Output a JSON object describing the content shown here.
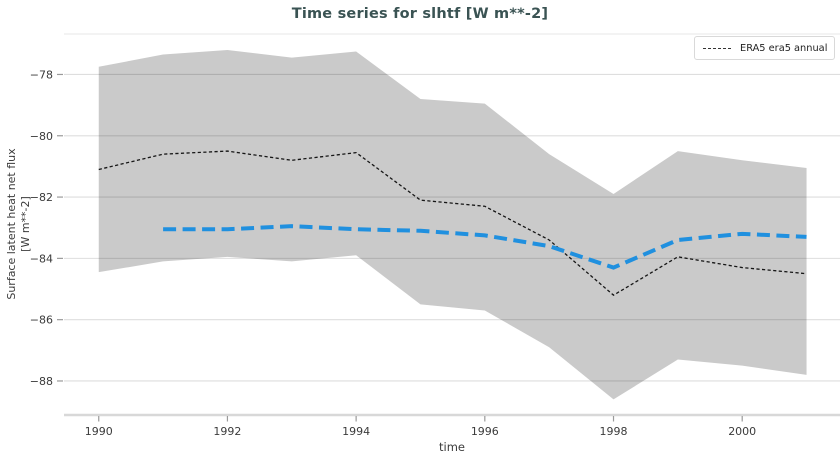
{
  "title": "Time series for slhtf [W m**-2]",
  "legend": {
    "position": "top-right",
    "items": [
      {
        "label": "ERA5 era5 annual",
        "sample": "black-dashed-line"
      }
    ]
  },
  "axes": {
    "x_label": "time",
    "y_label_line1": "Surface latent heat net flux",
    "y_label_line2": "[W m**-2]"
  },
  "chart_data": {
    "type": "line",
    "title": "Time series for slhtf [W m**-2]",
    "xlabel": "time",
    "ylabel": "Surface latent heat net flux [W m**-2]",
    "x": [
      1990,
      1991,
      1992,
      1993,
      1994,
      1995,
      1996,
      1997,
      1998,
      1999,
      2000,
      2001
    ],
    "xticks": [
      1990,
      1992,
      1994,
      1996,
      1998,
      2000
    ],
    "yticks": [
      -78,
      -80,
      -82,
      -84,
      -86,
      -88
    ],
    "xlim": [
      1989.46,
      2001.52
    ],
    "ylim": [
      -89.11,
      -76.68
    ],
    "grid": true,
    "legend_position": "top-right",
    "series": [
      {
        "label": "ERA5 era5 annual",
        "color": "#161616",
        "style": "thin-dashed",
        "values": [
          -81.1,
          -80.6,
          -80.5,
          -80.8,
          -80.55,
          -82.1,
          -82.3,
          -83.4,
          -85.2,
          -83.95,
          -84.3,
          -84.5
        ]
      },
      {
        "label": "",
        "color": "#2090df",
        "style": "thick-dashed",
        "values": [
          null,
          -83.05,
          -83.05,
          -82.95,
          -83.05,
          -83.1,
          -83.25,
          -83.6,
          -84.3,
          -83.4,
          -83.2,
          -83.3
        ]
      }
    ],
    "band": {
      "color": "#cacaca",
      "top": [
        -77.75,
        -77.35,
        -77.2,
        -77.45,
        -77.25,
        -78.8,
        -78.95,
        -80.6,
        -81.9,
        -80.5,
        -80.8,
        -81.05
      ],
      "bottom": [
        -84.45,
        -84.1,
        -83.95,
        -84.1,
        -83.9,
        -85.5,
        -85.7,
        -86.9,
        -88.6,
        -87.3,
        -87.5,
        -87.8
      ]
    }
  }
}
